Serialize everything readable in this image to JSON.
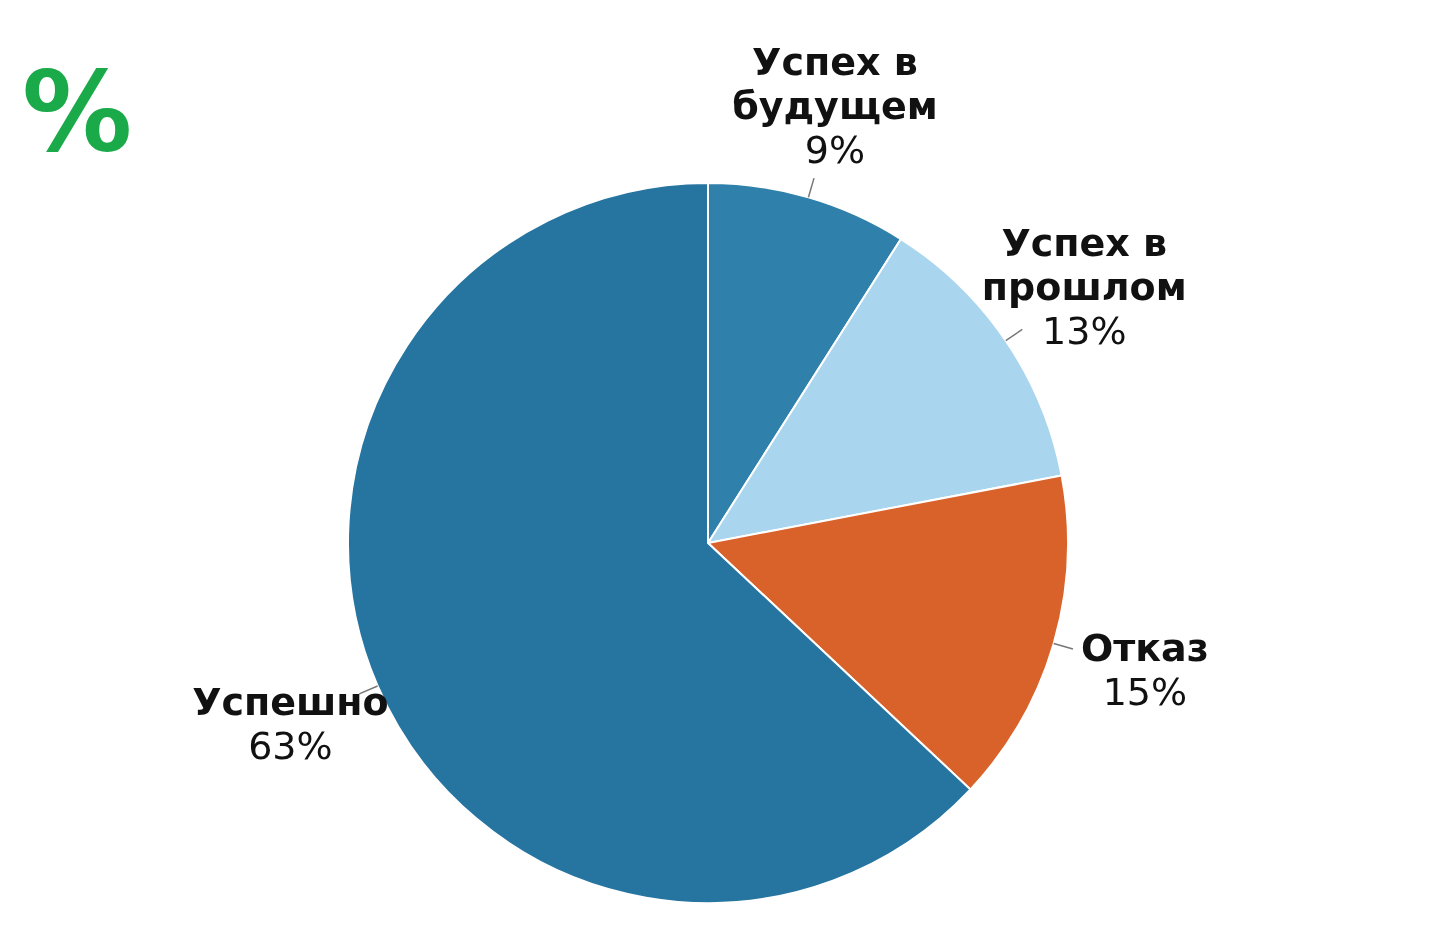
{
  "chart_data": {
    "type": "pie",
    "title": "%",
    "categories": [
      "Успех в будущем",
      "Успех в прошлом",
      "Отказ",
      "Успешно"
    ],
    "values": [
      9,
      13,
      15,
      63
    ],
    "value_labels": [
      "9%",
      "13%",
      "15%",
      "63%"
    ],
    "colors": [
      "#2f80aa",
      "#a9d5ee",
      "#d9622a",
      "#2674a0"
    ]
  }
}
